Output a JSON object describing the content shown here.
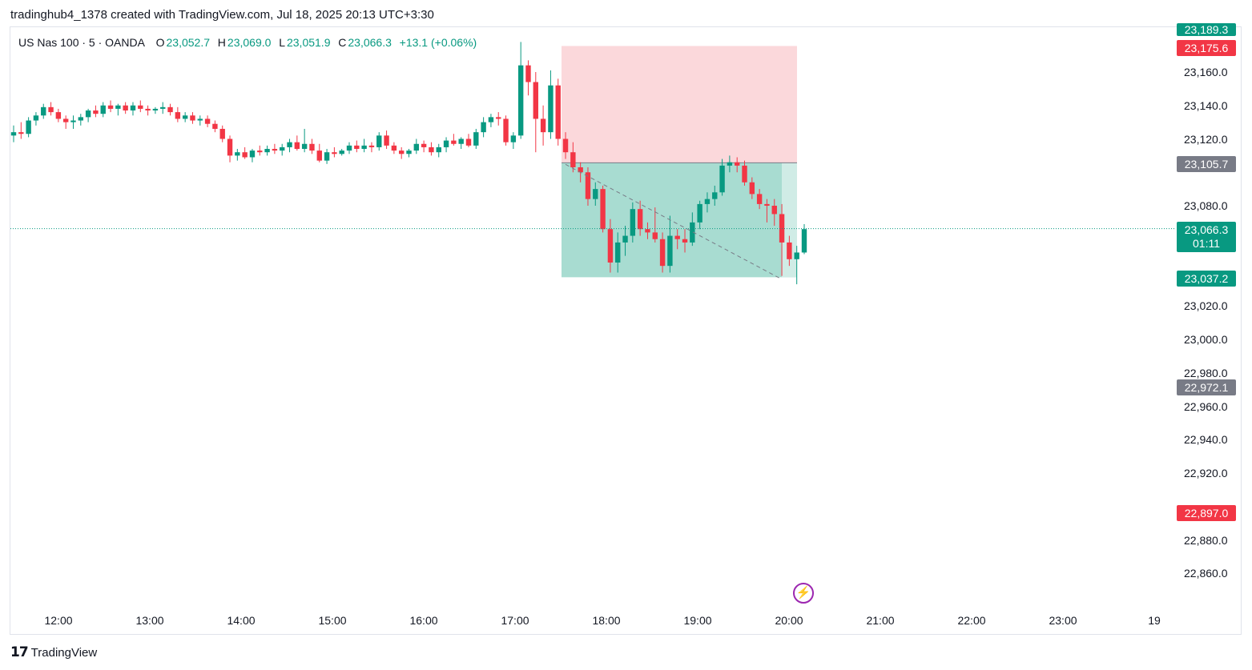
{
  "header": {
    "text": "tradinghub4_1378 created with TradingView.com, Jul 18, 2025 20:13 UTC+3:30"
  },
  "legend": {
    "symbol": "US Nas 100 · 5 · OANDA",
    "open_label": "O",
    "open": "23,052.7",
    "high_label": "H",
    "high": "23,069.0",
    "low_label": "L",
    "low": "23,051.9",
    "close_label": "C",
    "close": "23,066.3",
    "change": "+13.1 (+0.06%)"
  },
  "price_axis": [
    "23,160.0",
    "23,140.0",
    "23,120.0",
    "23,080.0",
    "23,020.0",
    "23,000.0",
    "22,980.0",
    "22,960.0",
    "22,940.0",
    "22,920.0",
    "22,880.0",
    "22,860.0"
  ],
  "time_axis": [
    "12:00",
    "13:00",
    "14:00",
    "15:00",
    "16:00",
    "17:00",
    "18:00",
    "19:00",
    "20:00",
    "21:00",
    "22:00",
    "23:00",
    "19"
  ],
  "price_tags": {
    "top_green": "23,189.3",
    "stop": "23,175.6",
    "entry": "23,105.7",
    "current": "23,066.3",
    "countdown": "01:11",
    "target": "23,037.2",
    "gray": "22,972.1",
    "red_low": "22,897.0"
  },
  "footer": {
    "logo_mark": "𝟭𝟳",
    "brand": "TradingView"
  },
  "colors": {
    "up": "#089981",
    "down": "#f23645",
    "stop_zone": "#fbd8db",
    "target_zone": "#a8dcd1",
    "gray_tag": "#787b86",
    "flash": "#9c27b0"
  },
  "icons": {
    "flash": "lightning-icon",
    "logo": "tradingview-logo-icon"
  },
  "chart_data": {
    "type": "candlestick",
    "symbol": "US Nas 100",
    "interval": "5",
    "x_ticks": [
      "12:00",
      "13:00",
      "14:00",
      "15:00",
      "16:00",
      "17:00",
      "18:00",
      "19:00",
      "20:00",
      "21:00",
      "22:00",
      "23:00",
      "19"
    ],
    "ylim": [
      22845,
      23195
    ],
    "last_price": 23066.3,
    "short_position": {
      "entry": 23105.7,
      "stop": 23175.6,
      "target": 23037.2,
      "start_time": "17:30",
      "end_time": "20:00"
    },
    "candles": [
      [
        23122,
        23128,
        23118,
        23124
      ],
      [
        23124,
        23130,
        23120,
        23123
      ],
      [
        23123,
        23133,
        23121,
        23131
      ],
      [
        23131,
        23136,
        23128,
        23134
      ],
      [
        23134,
        23141,
        23132,
        23139
      ],
      [
        23139,
        23142,
        23134,
        23136
      ],
      [
        23136,
        23138,
        23130,
        23132
      ],
      [
        23132,
        23134,
        23126,
        23130
      ],
      [
        23130,
        23134,
        23126,
        23131
      ],
      [
        23131,
        23135,
        23128,
        23133
      ],
      [
        23133,
        23138,
        23130,
        23137
      ],
      [
        23137,
        23140,
        23133,
        23135
      ],
      [
        23135,
        23142,
        23133,
        23140
      ],
      [
        23140,
        23143,
        23136,
        23138
      ],
      [
        23138,
        23141,
        23134,
        23140
      ],
      [
        23140,
        23142,
        23135,
        23137
      ],
      [
        23137,
        23142,
        23134,
        23140
      ],
      [
        23140,
        23143,
        23136,
        23138
      ],
      [
        23138,
        23140,
        23134,
        23137
      ],
      [
        23137,
        23139,
        23135,
        23138
      ],
      [
        23138,
        23142,
        23135,
        23139
      ],
      [
        23139,
        23141,
        23134,
        23136
      ],
      [
        23136,
        23139,
        23130,
        23132
      ],
      [
        23132,
        23136,
        23130,
        23134
      ],
      [
        23134,
        23136,
        23129,
        23131
      ],
      [
        23131,
        23134,
        23128,
        23132
      ],
      [
        23132,
        23134,
        23127,
        23129
      ],
      [
        23129,
        23131,
        23124,
        23126
      ],
      [
        23126,
        23128,
        23118,
        23120
      ],
      [
        23120,
        23122,
        23106,
        23110
      ],
      [
        23110,
        23114,
        23107,
        23112
      ],
      [
        23112,
        23115,
        23108,
        23109
      ],
      [
        23109,
        23114,
        23106,
        23113
      ],
      [
        23113,
        23116,
        23110,
        23112
      ],
      [
        23112,
        23116,
        23110,
        23114
      ],
      [
        23114,
        23117,
        23111,
        23113
      ],
      [
        23113,
        23117,
        23110,
        23115
      ],
      [
        23115,
        23120,
        23112,
        23118
      ],
      [
        23118,
        23122,
        23113,
        23114
      ],
      [
        23114,
        23126,
        23112,
        23117
      ],
      [
        23117,
        23120,
        23111,
        23113
      ],
      [
        23113,
        23117,
        23106,
        23107
      ],
      [
        23107,
        23114,
        23105,
        23112
      ],
      [
        23112,
        23115,
        23109,
        23111
      ],
      [
        23111,
        23114,
        23110,
        23113
      ],
      [
        23113,
        23118,
        23111,
        23116
      ],
      [
        23116,
        23119,
        23112,
        23114
      ],
      [
        23114,
        23120,
        23112,
        23116
      ],
      [
        23116,
        23118,
        23112,
        23115
      ],
      [
        23115,
        23124,
        23113,
        23122
      ],
      [
        23122,
        23125,
        23114,
        23116
      ],
      [
        23116,
        23118,
        23111,
        23113
      ],
      [
        23113,
        23115,
        23108,
        23111
      ],
      [
        23111,
        23114,
        23109,
        23113
      ],
      [
        23113,
        23120,
        23111,
        23117
      ],
      [
        23117,
        23119,
        23112,
        23115
      ],
      [
        23115,
        23118,
        23110,
        23112
      ],
      [
        23112,
        23117,
        23109,
        23115
      ],
      [
        23115,
        23121,
        23112,
        23119
      ],
      [
        23119,
        23123,
        23116,
        23117
      ],
      [
        23117,
        23121,
        23114,
        23120
      ],
      [
        23120,
        23123,
        23115,
        23116
      ],
      [
        23116,
        23126,
        23114,
        23124
      ],
      [
        23124,
        23133,
        23121,
        23130
      ],
      [
        23130,
        23135,
        23127,
        23133
      ],
      [
        23133,
        23136,
        23128,
        23132
      ],
      [
        23132,
        23134,
        23116,
        23118
      ],
      [
        23118,
        23124,
        23114,
        23122
      ],
      [
        23122,
        23178,
        23120,
        23164
      ],
      [
        23164,
        23167,
        23146,
        23154
      ],
      [
        23154,
        23160,
        23112,
        23132
      ],
      [
        23132,
        23140,
        23116,
        23124
      ],
      [
        23124,
        23161,
        23120,
        23152
      ],
      [
        23152,
        23156,
        23116,
        23120
      ],
      [
        23120,
        23124,
        23108,
        23112
      ],
      [
        23112,
        23118,
        23100,
        23103
      ],
      [
        23103,
        23106,
        23094,
        23100
      ],
      [
        23100,
        23103,
        23080,
        23084
      ],
      [
        23084,
        23094,
        23080,
        23090
      ],
      [
        23090,
        23092,
        23064,
        23066
      ],
      [
        23066,
        23072,
        23040,
        23046
      ],
      [
        23046,
        23064,
        23040,
        23058
      ],
      [
        23058,
        23068,
        23050,
        23062
      ],
      [
        23062,
        23082,
        23058,
        23078
      ],
      [
        23078,
        23083,
        23062,
        23066
      ],
      [
        23066,
        23070,
        23060,
        23064
      ],
      [
        23064,
        23079,
        23058,
        23060
      ],
      [
        23060,
        23064,
        23040,
        23044
      ],
      [
        23044,
        23074,
        23040,
        23062
      ],
      [
        23062,
        23066,
        23054,
        23060
      ],
      [
        23060,
        23066,
        23052,
        23058
      ],
      [
        23058,
        23076,
        23056,
        23070
      ],
      [
        23070,
        23083,
        23066,
        23081
      ],
      [
        23081,
        23088,
        23076,
        23084
      ],
      [
        23084,
        23092,
        23080,
        23088
      ],
      [
        23088,
        23108,
        23086,
        23104
      ],
      [
        23104,
        23110,
        23100,
        23106
      ],
      [
        23106,
        23109,
        23100,
        23104
      ],
      [
        23104,
        23107,
        23092,
        23094
      ],
      [
        23094,
        23097,
        23084,
        23087
      ],
      [
        23087,
        23090,
        23078,
        23081
      ],
      [
        23081,
        23084,
        23070,
        23080
      ],
      [
        23080,
        23084,
        23068,
        23075
      ],
      [
        23075,
        23081,
        23038,
        23058
      ],
      [
        23058,
        23062,
        23044,
        23048
      ],
      [
        23048,
        23056,
        23033,
        23052
      ],
      [
        23052,
        23069,
        23051,
        23066
      ]
    ]
  }
}
